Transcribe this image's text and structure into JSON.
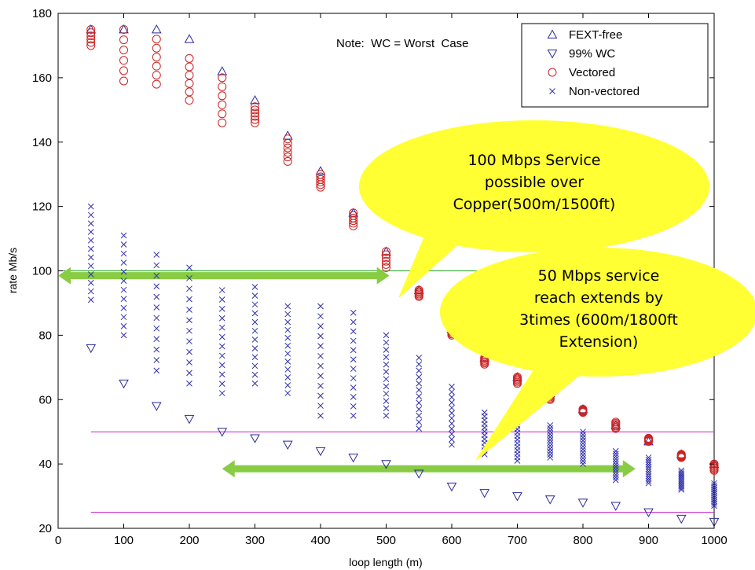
{
  "chart_data": {
    "type": "scatter",
    "title": "",
    "xlabel": "loop length (m)",
    "ylabel": "rate Mb/s",
    "xlim": [
      0,
      1000
    ],
    "ylim": [
      20,
      180
    ],
    "xticks": [
      0,
      100,
      200,
      300,
      400,
      500,
      600,
      700,
      800,
      900,
      1000
    ],
    "yticks": [
      20,
      40,
      60,
      80,
      100,
      120,
      140,
      160,
      180
    ],
    "grid": false,
    "legend_position": "top-right",
    "note": "Note:  WC = Worst  Case",
    "x": [
      50,
      100,
      150,
      200,
      250,
      300,
      350,
      400,
      450,
      500,
      550,
      600,
      650,
      700,
      750,
      800,
      850,
      900,
      950,
      1000
    ],
    "series": [
      {
        "name": "FEXT-free",
        "marker": "triangle-up",
        "color": "#2a2a9a",
        "values": [
          175,
          175,
          175,
          172,
          162,
          153,
          142,
          131,
          118,
          106,
          94,
          82,
          73,
          67,
          62,
          57,
          52,
          47,
          43,
          40
        ]
      },
      {
        "name": "99% WC",
        "marker": "triangle-down",
        "color": "#2a2a9a",
        "values": [
          76,
          65,
          58,
          54,
          50,
          48,
          46,
          44,
          42,
          40,
          37,
          33,
          31,
          30,
          29,
          28,
          27,
          25,
          23,
          22
        ]
      },
      {
        "name": "Vectored",
        "marker": "circle",
        "color": "#cc2222",
        "ranges": [
          [
            170,
            175
          ],
          [
            159,
            175
          ],
          [
            158,
            172
          ],
          [
            153,
            166
          ],
          [
            146,
            160
          ],
          [
            146,
            151
          ],
          [
            134,
            141
          ],
          [
            126,
            130
          ],
          [
            114,
            118
          ],
          [
            101,
            106
          ],
          [
            92,
            94
          ],
          [
            80,
            82
          ],
          [
            71,
            73
          ],
          [
            65,
            67
          ],
          [
            60,
            62
          ],
          [
            56,
            57
          ],
          [
            51,
            53
          ],
          [
            47,
            48
          ],
          [
            42,
            43
          ],
          [
            38,
            40
          ]
        ]
      },
      {
        "name": "Non-vectored",
        "marker": "x",
        "color": "#3030b0",
        "ranges": [
          [
            91,
            120
          ],
          [
            80,
            111
          ],
          [
            69,
            105
          ],
          [
            65,
            101
          ],
          [
            62,
            94
          ],
          [
            65,
            95
          ],
          [
            62,
            89
          ],
          [
            55,
            89
          ],
          [
            55,
            87
          ],
          [
            55,
            80
          ],
          [
            51,
            73
          ],
          [
            46,
            64
          ],
          [
            43,
            56
          ],
          [
            41,
            53
          ],
          [
            42,
            52
          ],
          [
            40,
            50
          ],
          [
            35,
            44
          ],
          [
            34,
            42
          ],
          [
            32,
            38
          ],
          [
            27,
            34
          ]
        ]
      }
    ],
    "reference_lines": [
      {
        "y": 100,
        "color": "#22aa22",
        "x_range": [
          0,
          650
        ]
      },
      {
        "y": 50,
        "color": "#cc22cc",
        "x_range": [
          50,
          1000
        ]
      },
      {
        "y": 25,
        "color": "#cc22cc",
        "x_range": [
          50,
          1000
        ]
      }
    ],
    "arrows": [
      {
        "color": "#88cc44",
        "y": 98.5,
        "x_range": [
          0,
          505
        ]
      },
      {
        "color": "#88cc44",
        "y": 38.5,
        "x_range": [
          250,
          880
        ]
      }
    ],
    "callouts": [
      {
        "lines": [
          "100 Mbps Service",
          "possible over",
          "Copper(500m/1500ft)"
        ],
        "color": "#ffff33"
      },
      {
        "lines": [
          "50 Mbps service",
          "reach extends by",
          "3times (600m/1800ft",
          "Extension)"
        ],
        "color": "#ffff33"
      }
    ]
  }
}
